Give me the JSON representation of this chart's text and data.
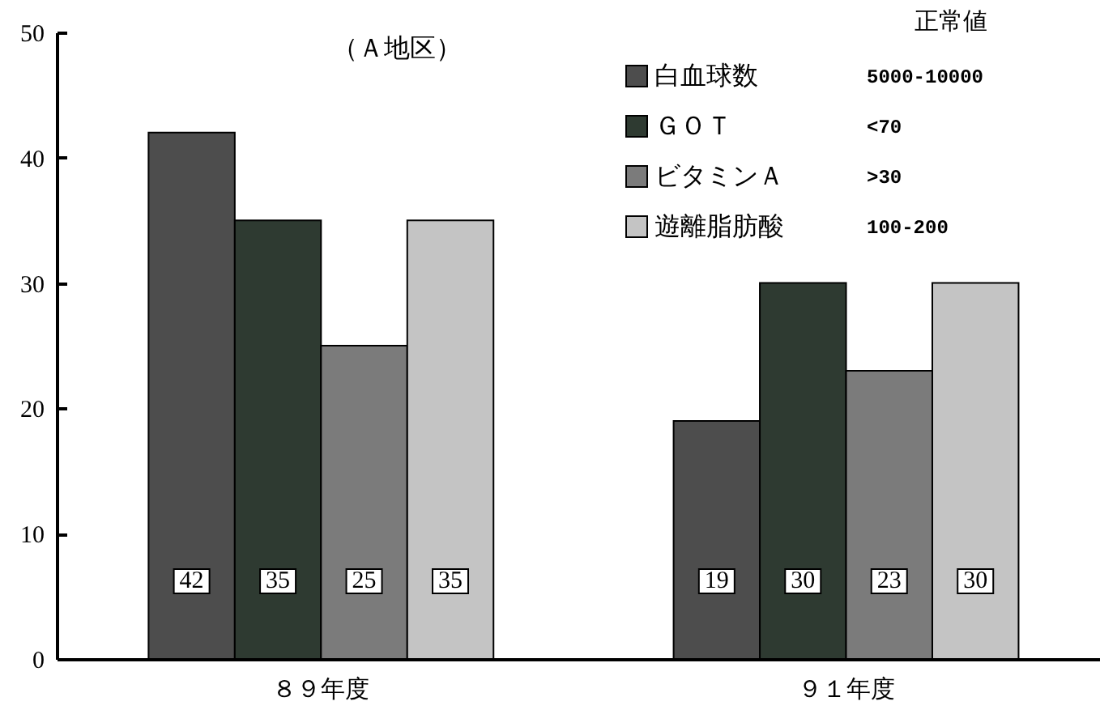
{
  "chart_data": {
    "type": "bar",
    "title": "（Ａ地区）",
    "categories": [
      "８９年度",
      "９１年度"
    ],
    "series": [
      {
        "name": "白血球数",
        "color": "#4d4d4d",
        "values": [
          42,
          19
        ]
      },
      {
        "name": "ＧＯＴ",
        "color": "#2e3a31",
        "values": [
          35,
          30
        ]
      },
      {
        "name": "ビタミンＡ",
        "color": "#7b7b7b",
        "values": [
          25,
          23
        ]
      },
      {
        "name": "遊離脂肪酸",
        "color": "#c4c4c4",
        "values": [
          35,
          30
        ]
      }
    ],
    "ylim": [
      0,
      50
    ],
    "yticks": [
      0,
      10,
      20,
      30,
      40,
      50
    ],
    "legend": "top right",
    "data_labels": true,
    "annotations": [
      "正常値",
      "5000-10000",
      "<70",
      ">30",
      "100-200"
    ]
  }
}
